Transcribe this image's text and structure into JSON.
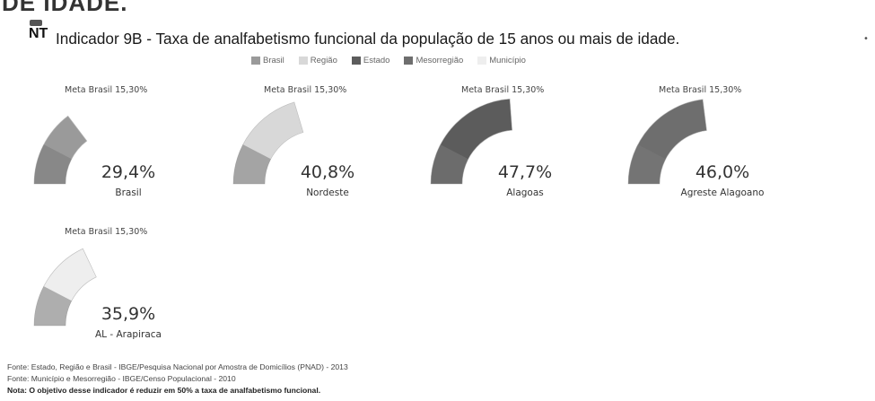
{
  "page": {
    "top_cut_text": "DE IDADE.",
    "badge_label": "NT",
    "title": "Indicador 9B - Taxa de analfabetismo funcional da população de 15 anos ou mais de idade."
  },
  "legend": [
    {
      "label": "Brasil",
      "color": "#9a9a9a"
    },
    {
      "label": "Região",
      "color": "#d8d8d8"
    },
    {
      "label": "Estado",
      "color": "#5c5c5c"
    },
    {
      "label": "Mesorregião",
      "color": "#6e6e6e"
    },
    {
      "label": "Município",
      "color": "#eeeeee"
    }
  ],
  "chart_data": {
    "type": "gauge",
    "scale_max": 100,
    "meta_label": "Meta Brasil  15,30%",
    "meta_value": 15.3,
    "gauges": [
      {
        "name": "Brasil",
        "value": 29.4,
        "display": "29,4%",
        "color": "#9a9a9a"
      },
      {
        "name": "Nordeste",
        "value": 40.8,
        "display": "40,8%",
        "color": "#d8d8d8"
      },
      {
        "name": "Alagoas",
        "value": 47.7,
        "display": "47,7%",
        "color": "#5c5c5c"
      },
      {
        "name": "Agreste Alagoano",
        "value": 46.0,
        "display": "46,0%",
        "color": "#6e6e6e"
      },
      {
        "name": "AL - Arapiraca",
        "value": 35.9,
        "display": "35,9%",
        "color": "#eeeeee"
      }
    ]
  },
  "footer": {
    "line1": "Fonte: Estado, Região e Brasil - IBGE/Pesquisa Nacional por Amostra de Domicílios (PNAD) - 2013",
    "line2": "Fonte: Município e Mesorregião - IBGE/Censo Populacional - 2010",
    "nota": "Nota: O objetivo desse indicador é reduzir em 50% a taxa de analfabetismo funcional."
  }
}
